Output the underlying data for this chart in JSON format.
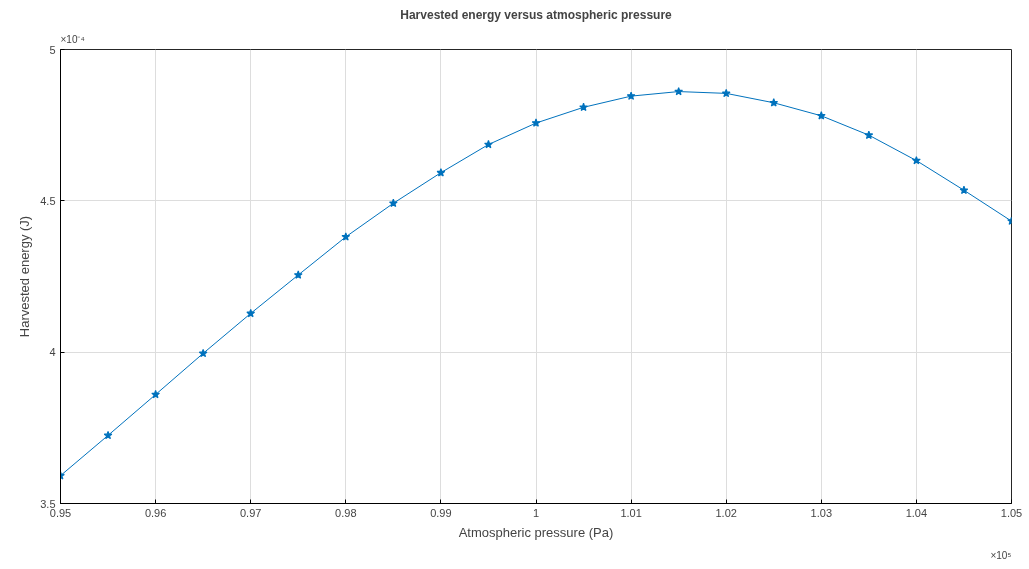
{
  "chart_data": {
    "type": "line",
    "title": "Harvested energy versus atmospheric pressure",
    "xlabel": "Atmospheric pressure (Pa)",
    "ylabel": "Harvested energy (J)",
    "x": [
      0.95,
      0.955,
      0.96,
      0.965,
      0.97,
      0.975,
      0.98,
      0.985,
      0.99,
      0.995,
      1.0,
      1.005,
      1.01,
      1.015,
      1.02,
      1.025,
      1.03,
      1.035,
      1.04,
      1.045,
      1.05
    ],
    "series": [
      {
        "color": "#0072bd",
        "values": [
          3.592,
          3.725,
          3.86,
          3.996,
          4.128,
          4.255,
          4.381,
          4.492,
          4.593,
          4.686,
          4.757,
          4.809,
          4.846,
          4.861,
          4.855,
          4.824,
          4.781,
          4.717,
          4.633,
          4.535,
          4.433
        ]
      }
    ],
    "xlim": [
      0.95,
      1.05
    ],
    "ylim": [
      3.5,
      5
    ],
    "xticks": [
      0.95,
      0.96,
      0.97,
      0.98,
      0.99,
      1,
      1.01,
      1.02,
      1.03,
      1.04,
      1.05
    ],
    "yticks": [
      3.5,
      4,
      4.5,
      5
    ],
    "annotations": [
      "×10⁻⁴",
      "×10⁵"
    ],
    "grid": true,
    "marker": "star",
    "line_style": "solid"
  }
}
